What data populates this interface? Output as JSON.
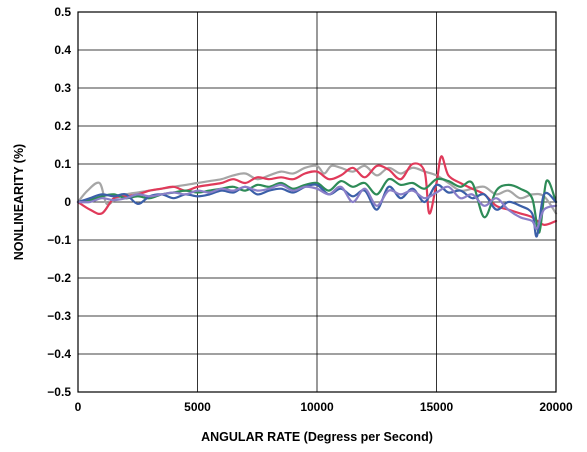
{
  "chart_data": {
    "type": "line",
    "title": "",
    "xlabel": "ANGULAR RATE (Degress per Second)",
    "ylabel": "NONLINEARITY (%)",
    "xlim": [
      0,
      20000
    ],
    "ylim": [
      -0.5,
      0.5
    ],
    "grid": true,
    "legend": "none",
    "x_ticks": [
      0,
      5000,
      10000,
      15000,
      20000
    ],
    "x_tick_labels": [
      "0",
      "5000",
      "10000",
      "15000",
      "20000"
    ],
    "y_ticks": [
      0.5,
      0.4,
      0.3,
      0.2,
      0.1,
      0,
      -0.1,
      -0.2,
      -0.3,
      -0.4,
      -0.5
    ],
    "y_tick_labels": [
      "0.5",
      "0.4",
      "0.3",
      "0.2",
      "0.1",
      "0",
      "−0.1",
      "−0.2",
      "−0.3",
      "−0.4",
      "−0.5"
    ],
    "series": [
      {
        "color": "#a6a6a6",
        "points": [
          [
            0,
            0
          ],
          [
            400,
            0.03
          ],
          [
            900,
            0.05
          ],
          [
            1200,
            -0.005
          ],
          [
            1600,
            0.01
          ],
          [
            2000,
            0.02
          ],
          [
            2500,
            0.025
          ],
          [
            3000,
            0.03
          ],
          [
            3500,
            0.035
          ],
          [
            4000,
            0.04
          ],
          [
            4500,
            0.045
          ],
          [
            5000,
            0.05
          ],
          [
            5500,
            0.055
          ],
          [
            6000,
            0.06
          ],
          [
            6500,
            0.07
          ],
          [
            7000,
            0.075
          ],
          [
            7500,
            0.06
          ],
          [
            8000,
            0.07
          ],
          [
            8500,
            0.08
          ],
          [
            9000,
            0.075
          ],
          [
            9500,
            0.09
          ],
          [
            10000,
            0.095
          ],
          [
            10300,
            0.075
          ],
          [
            10600,
            0.095
          ],
          [
            11000,
            0.09
          ],
          [
            11500,
            0.08
          ],
          [
            12000,
            0.095
          ],
          [
            12500,
            0.07
          ],
          [
            13000,
            0.09
          ],
          [
            13500,
            0.075
          ],
          [
            14000,
            0.09
          ],
          [
            14500,
            0.08
          ],
          [
            15000,
            0.07
          ],
          [
            15500,
            0.05
          ],
          [
            16000,
            0.03
          ],
          [
            16500,
            0.035
          ],
          [
            17000,
            0.04
          ],
          [
            17500,
            0.02
          ],
          [
            18000,
            0.03
          ],
          [
            18500,
            0.01
          ],
          [
            19000,
            0.02
          ],
          [
            19500,
            0.015
          ],
          [
            20000,
            -0.03
          ]
        ]
      },
      {
        "color": "#e03a5a",
        "points": [
          [
            0,
            0
          ],
          [
            500,
            -0.02
          ],
          [
            1000,
            -0.03
          ],
          [
            1500,
            0.01
          ],
          [
            2000,
            0.015
          ],
          [
            2500,
            0.02
          ],
          [
            3000,
            0.03
          ],
          [
            3500,
            0.035
          ],
          [
            4000,
            0.04
          ],
          [
            4500,
            0.03
          ],
          [
            5000,
            0.04
          ],
          [
            5500,
            0.045
          ],
          [
            6000,
            0.05
          ],
          [
            6500,
            0.06
          ],
          [
            7000,
            0.05
          ],
          [
            7500,
            0.065
          ],
          [
            8000,
            0.06
          ],
          [
            8500,
            0.065
          ],
          [
            9000,
            0.06
          ],
          [
            9500,
            0.075
          ],
          [
            10000,
            0.08
          ],
          [
            10500,
            0.06
          ],
          [
            11000,
            0.07
          ],
          [
            11500,
            0.09
          ],
          [
            12000,
            0.065
          ],
          [
            12500,
            0.095
          ],
          [
            13000,
            0.085
          ],
          [
            13500,
            0.06
          ],
          [
            14000,
            0.1
          ],
          [
            14500,
            0.08
          ],
          [
            14700,
            -0.03
          ],
          [
            15000,
            0.05
          ],
          [
            15200,
            0.12
          ],
          [
            15500,
            0.07
          ],
          [
            16000,
            0.05
          ],
          [
            16500,
            0.035
          ],
          [
            17000,
            0.02
          ],
          [
            17500,
            -0.01
          ],
          [
            18000,
            -0.02
          ],
          [
            18500,
            -0.03
          ],
          [
            19000,
            -0.04
          ],
          [
            19500,
            -0.06
          ],
          [
            20000,
            -0.05
          ]
        ]
      },
      {
        "color": "#2e8b57",
        "points": [
          [
            0,
            0
          ],
          [
            500,
            0.005
          ],
          [
            1000,
            0.015
          ],
          [
            1500,
            0.02
          ],
          [
            2000,
            0.01
          ],
          [
            2500,
            0.015
          ],
          [
            3000,
            0.01
          ],
          [
            3500,
            0.02
          ],
          [
            4000,
            0.025
          ],
          [
            4500,
            0.03
          ],
          [
            5000,
            0.025
          ],
          [
            5500,
            0.03
          ],
          [
            6000,
            0.035
          ],
          [
            6500,
            0.04
          ],
          [
            7000,
            0.03
          ],
          [
            7500,
            0.045
          ],
          [
            8000,
            0.04
          ],
          [
            8500,
            0.05
          ],
          [
            9000,
            0.035
          ],
          [
            9500,
            0.045
          ],
          [
            10000,
            0.05
          ],
          [
            10500,
            0.03
          ],
          [
            11000,
            0.055
          ],
          [
            11500,
            0.04
          ],
          [
            12000,
            0.05
          ],
          [
            12500,
            0.02
          ],
          [
            13000,
            0.06
          ],
          [
            13500,
            0.045
          ],
          [
            14000,
            0.05
          ],
          [
            14500,
            0.035
          ],
          [
            15000,
            0.06
          ],
          [
            15500,
            0.055
          ],
          [
            16000,
            0.04
          ],
          [
            16500,
            0.05
          ],
          [
            17000,
            -0.04
          ],
          [
            17500,
            0.03
          ],
          [
            18000,
            0.045
          ],
          [
            18500,
            0.035
          ],
          [
            19000,
            0.01
          ],
          [
            19300,
            -0.08
          ],
          [
            19600,
            0.055
          ],
          [
            20000,
            0
          ]
        ]
      },
      {
        "color": "#3b5fa8",
        "points": [
          [
            0,
            0
          ],
          [
            500,
            0.01
          ],
          [
            1000,
            0.02
          ],
          [
            1500,
            0.015
          ],
          [
            2000,
            0.02
          ],
          [
            2500,
            -0.005
          ],
          [
            3000,
            0.015
          ],
          [
            3500,
            0.02
          ],
          [
            4000,
            0.01
          ],
          [
            4500,
            0.02
          ],
          [
            5000,
            0.015
          ],
          [
            5500,
            0.02
          ],
          [
            6000,
            0.03
          ],
          [
            6500,
            0.025
          ],
          [
            7000,
            0.04
          ],
          [
            7500,
            0.02
          ],
          [
            8000,
            0.03
          ],
          [
            8500,
            0.035
          ],
          [
            9000,
            0.025
          ],
          [
            9500,
            0.04
          ],
          [
            10000,
            0.045
          ],
          [
            10500,
            0.02
          ],
          [
            11000,
            0.035
          ],
          [
            11500,
            0.015
          ],
          [
            12000,
            0.03
          ],
          [
            12500,
            -0.02
          ],
          [
            13000,
            0.04
          ],
          [
            13500,
            0.01
          ],
          [
            14000,
            0.035
          ],
          [
            14500,
            0
          ],
          [
            15000,
            0.045
          ],
          [
            15500,
            0.025
          ],
          [
            16000,
            0.03
          ],
          [
            16500,
            0.01
          ],
          [
            17000,
            0.02
          ],
          [
            17500,
            -0.02
          ],
          [
            18000,
            0
          ],
          [
            18500,
            -0.01
          ],
          [
            19000,
            -0.03
          ],
          [
            19200,
            -0.09
          ],
          [
            19500,
            0.02
          ],
          [
            20000,
            0
          ]
        ]
      },
      {
        "color": "#8a7fc8",
        "points": [
          [
            0,
            0
          ],
          [
            500,
            0
          ],
          [
            1000,
            0.01
          ],
          [
            1500,
            0.005
          ],
          [
            2000,
            0.01
          ],
          [
            2500,
            0.02
          ],
          [
            3000,
            0.015
          ],
          [
            3500,
            0.02
          ],
          [
            4000,
            0.025
          ],
          [
            4500,
            0.02
          ],
          [
            5000,
            0.03
          ],
          [
            5500,
            0.025
          ],
          [
            6000,
            0.035
          ],
          [
            6500,
            0.03
          ],
          [
            7000,
            0.04
          ],
          [
            7500,
            0.03
          ],
          [
            8000,
            0.035
          ],
          [
            8500,
            0.045
          ],
          [
            9000,
            0.03
          ],
          [
            9500,
            0.04
          ],
          [
            10000,
            0.035
          ],
          [
            10500,
            0.02
          ],
          [
            11000,
            0.04
          ],
          [
            11500,
            0
          ],
          [
            12000,
            0.035
          ],
          [
            12500,
            -0.01
          ],
          [
            13000,
            0.03
          ],
          [
            13500,
            0.02
          ],
          [
            14000,
            0.03
          ],
          [
            14500,
            0.01
          ],
          [
            15000,
            0.025
          ],
          [
            15500,
            0.04
          ],
          [
            16000,
            0.01
          ],
          [
            16500,
            0.02
          ],
          [
            17000,
            -0.01
          ],
          [
            17500,
            0.01
          ],
          [
            18000,
            -0.02
          ],
          [
            18500,
            -0.04
          ],
          [
            19000,
            -0.05
          ],
          [
            19200,
            -0.07
          ],
          [
            19500,
            -0.02
          ],
          [
            20000,
            -0.01
          ]
        ]
      }
    ]
  }
}
